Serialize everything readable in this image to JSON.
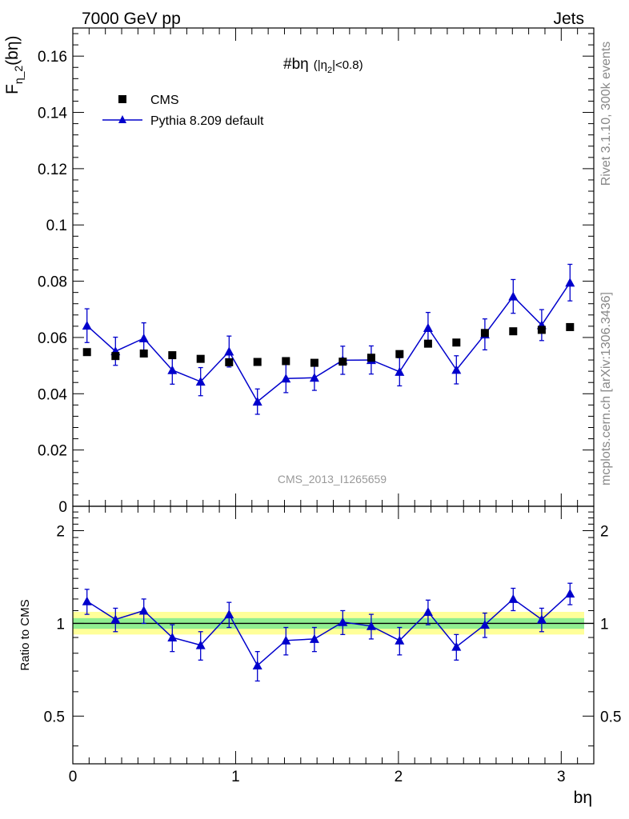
{
  "header": {
    "left": "7000 GeV pp",
    "right": "Jets"
  },
  "side_labels": {
    "rivet": "Rivet 3.1.10,  300k events",
    "mcplots": "mcplots.cern.ch [arXiv:1306.3436]"
  },
  "watermark": "CMS_2013_I1265659",
  "colors": {
    "cms": "#000000",
    "pythia": "#0000cc",
    "band_inner": "#90ee90",
    "band_outer": "#ffff99"
  },
  "chart_data": [
    {
      "type": "scatter",
      "panel": "main",
      "title_main": "#bη",
      "title_sub": "(|η",
      "title_sub2": "|<0.8)",
      "title_subscript": "2",
      "ylabel_main": "F",
      "ylabel_subscript": "η_2",
      "ylabel_tail": "(bη)",
      "xlabel": "bη",
      "xlim": [
        0,
        3.2
      ],
      "ylim": [
        0,
        0.17
      ],
      "y_ticks": [
        "0",
        "0.02",
        "0.04",
        "0.06",
        "0.08",
        "0.1",
        "0.12",
        "0.14",
        "0.16"
      ],
      "x_ticks": [
        "0",
        "1",
        "2",
        "3"
      ],
      "legend_position": "top-left",
      "x": [
        0.087,
        0.262,
        0.436,
        0.611,
        0.785,
        0.96,
        1.134,
        1.309,
        1.484,
        1.658,
        1.833,
        2.007,
        2.182,
        2.356,
        2.531,
        2.705,
        2.88,
        3.054
      ],
      "series": [
        {
          "name": "CMS",
          "marker": "square",
          "values": [
            0.0548,
            0.0534,
            0.0543,
            0.0537,
            0.0524,
            0.0512,
            0.0513,
            0.0516,
            0.051,
            0.0514,
            0.0528,
            0.0541,
            0.0578,
            0.0582,
            0.0616,
            0.0622,
            0.0627,
            0.0637
          ]
        },
        {
          "name": "Pythia 8.209 default",
          "marker": "triangle",
          "values": [
            0.0642,
            0.0551,
            0.0597,
            0.0484,
            0.0443,
            0.055,
            0.0372,
            0.0454,
            0.0457,
            0.0519,
            0.052,
            0.0478,
            0.0634,
            0.0485,
            0.0611,
            0.0746,
            0.0644,
            0.0795
          ],
          "errors": [
            0.006,
            0.005,
            0.0055,
            0.005,
            0.005,
            0.0055,
            0.0045,
            0.005,
            0.0045,
            0.005,
            0.005,
            0.005,
            0.0055,
            0.005,
            0.0055,
            0.006,
            0.0055,
            0.0065
          ]
        }
      ]
    },
    {
      "type": "scatter",
      "panel": "ratio",
      "ylabel": "Ratio to CMS",
      "xlabel": "bη",
      "xlim": [
        0,
        3.2
      ],
      "ylim": [
        0.35,
        2.4
      ],
      "log_y": true,
      "y_ticks": [
        "0.5",
        "1",
        "2"
      ],
      "x_ticks": [
        "0",
        "1",
        "2",
        "3"
      ],
      "x": [
        0.087,
        0.262,
        0.436,
        0.611,
        0.785,
        0.96,
        1.134,
        1.309,
        1.484,
        1.658,
        1.833,
        2.007,
        2.182,
        2.356,
        2.531,
        2.705,
        2.88,
        3.054
      ],
      "band_inner": [
        0.96,
        1.04
      ],
      "band_outer": [
        0.92,
        1.09
      ],
      "series": [
        {
          "name": "Pythia 8.209 default",
          "values": [
            1.18,
            1.03,
            1.1,
            0.9,
            0.85,
            1.07,
            0.73,
            0.88,
            0.89,
            1.01,
            0.98,
            0.88,
            1.09,
            0.84,
            0.99,
            1.2,
            1.03,
            1.25
          ],
          "errors": [
            0.11,
            0.09,
            0.1,
            0.09,
            0.09,
            0.1,
            0.08,
            0.09,
            0.08,
            0.09,
            0.09,
            0.09,
            0.1,
            0.08,
            0.09,
            0.1,
            0.09,
            0.1
          ]
        }
      ]
    }
  ]
}
